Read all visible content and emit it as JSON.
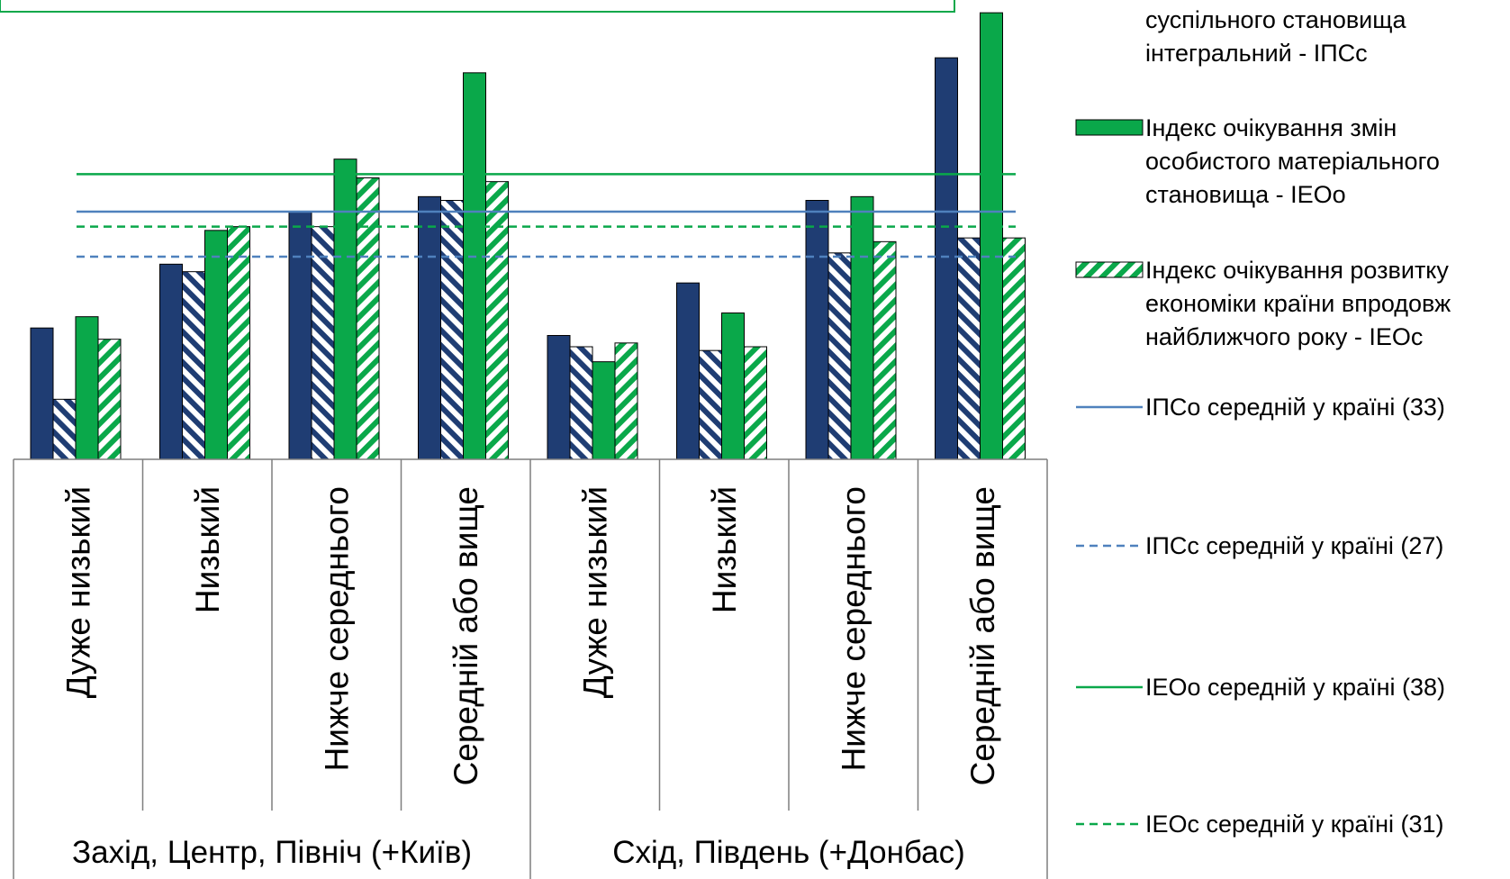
{
  "chart_data": {
    "type": "bar",
    "title": "",
    "xlabel": "",
    "ylabel": "",
    "ylim": [
      0,
      60
    ],
    "grid": false,
    "legend_position": "right",
    "groups": [
      {
        "label": "Захід, Центр, Північ (+Київ)",
        "categories": [
          "Дуже низький",
          "Низький",
          "Нижче середнього",
          "Середній або вище"
        ]
      },
      {
        "label": "Схід, Південь (+Донбас)",
        "categories": [
          "Дуже низький",
          "Низький",
          "Нижче середнього",
          "Середній або вище"
        ]
      }
    ],
    "series": [
      {
        "name": "суспільного становища інтегральний - ІПСс",
        "legend_lines": [
          "суспільного становища",
          "інтегральний - ІПСс"
        ],
        "style": "solid",
        "color": "#1f3d73",
        "values": [
          17.5,
          26,
          33,
          35,
          16.5,
          23.5,
          34.5,
          53.5
        ]
      },
      {
        "name": "",
        "style": "hatch-navy",
        "color": "#1f3d73",
        "values": [
          8,
          25,
          31,
          34.5,
          15,
          14.5,
          27.5,
          29.5
        ]
      },
      {
        "name": "Індекс очікування змін особистого матеріального становища - ІЕОо",
        "legend_lines": [
          "Індекс очікування змін",
          "особистого матеріального",
          "становища - ІЕОо"
        ],
        "style": "solid",
        "color": "#0aa84a",
        "values": [
          19,
          30.5,
          40,
          51.5,
          13,
          19.5,
          35,
          59.5
        ]
      },
      {
        "name": "Індекс очікування розвитку економіки країни впродовж найближчого року - ІЕОс",
        "legend_lines": [
          "Індекс очікування розвитку",
          "економіки країни впродовж",
          "найближчого року - ІЕОс"
        ],
        "style": "hatch-green",
        "color": "#0aa84a",
        "values": [
          16,
          31,
          37.5,
          37,
          15.5,
          15,
          29,
          29.5
        ]
      }
    ],
    "reference_lines": [
      {
        "name": "ІПСо середній у країні (33)",
        "value": 33,
        "color": "#4f81bd",
        "dash": "solid"
      },
      {
        "name": "ІПСс середній у країні (27)",
        "value": 27,
        "color": "#4f81bd",
        "dash": "dashed"
      },
      {
        "name": "ІЕОо середній у країні (38)",
        "value": 38,
        "color": "#0aa84a",
        "dash": "solid"
      },
      {
        "name": "ІЕОс середній у країні (31)",
        "value": 31,
        "color": "#0aa84a",
        "dash": "dashed"
      }
    ]
  }
}
